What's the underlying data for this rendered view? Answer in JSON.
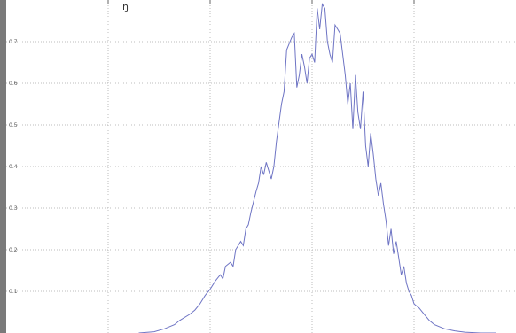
{
  "chart_data": {
    "type": "line",
    "title": "ŋ",
    "xlabel": "",
    "ylabel": "",
    "xlim": [
      0,
      1
    ],
    "ylim": [
      0,
      0.8
    ],
    "x_gridlines": [
      0.2,
      0.4,
      0.6,
      0.8
    ],
    "y_ticks": [
      {
        "value": 0.1,
        "label": "0.1"
      },
      {
        "value": 0.2,
        "label": "0.2"
      },
      {
        "value": 0.3,
        "label": "0.3"
      },
      {
        "value": 0.4,
        "label": "0.4"
      },
      {
        "value": 0.5,
        "label": "0.5"
      },
      {
        "value": 0.6,
        "label": "0.6"
      },
      {
        "value": 0.7,
        "label": "0.7"
      }
    ],
    "grid": true,
    "legend": "none",
    "colors": {
      "line": "#6e74c4",
      "grid": "#bdbdbd",
      "left_bar": "#7a7a7a",
      "background": "#ffffff"
    },
    "series": [
      {
        "x": [
          0.26,
          0.29,
          0.31,
          0.33,
          0.34,
          0.36,
          0.37,
          0.38,
          0.385,
          0.39,
          0.4,
          0.41,
          0.42,
          0.425,
          0.43,
          0.44,
          0.445,
          0.45,
          0.46,
          0.465,
          0.47,
          0.475,
          0.48,
          0.49,
          0.495,
          0.5,
          0.505,
          0.51,
          0.52,
          0.525,
          0.53,
          0.54,
          0.545,
          0.55,
          0.56,
          0.565,
          0.57,
          0.575,
          0.58,
          0.585,
          0.59,
          0.595,
          0.6,
          0.605,
          0.61,
          0.615,
          0.62,
          0.625,
          0.63,
          0.635,
          0.64,
          0.645,
          0.65,
          0.655,
          0.66,
          0.665,
          0.67,
          0.675,
          0.68,
          0.685,
          0.69,
          0.695,
          0.7,
          0.705,
          0.71,
          0.715,
          0.72,
          0.725,
          0.73,
          0.735,
          0.74,
          0.745,
          0.75,
          0.755,
          0.76,
          0.765,
          0.77,
          0.775,
          0.78,
          0.785,
          0.79,
          0.795,
          0.8,
          0.81,
          0.82,
          0.83,
          0.84,
          0.86,
          0.88,
          0.9,
          0.93,
          0.96
        ],
        "y": [
          0.0,
          0.003,
          0.01,
          0.02,
          0.03,
          0.045,
          0.055,
          0.07,
          0.08,
          0.09,
          0.105,
          0.125,
          0.14,
          0.13,
          0.16,
          0.17,
          0.16,
          0.2,
          0.22,
          0.21,
          0.25,
          0.26,
          0.29,
          0.34,
          0.36,
          0.4,
          0.38,
          0.41,
          0.37,
          0.4,
          0.46,
          0.55,
          0.58,
          0.68,
          0.71,
          0.72,
          0.59,
          0.62,
          0.67,
          0.64,
          0.6,
          0.66,
          0.67,
          0.65,
          0.78,
          0.73,
          0.79,
          0.78,
          0.7,
          0.67,
          0.65,
          0.74,
          0.73,
          0.72,
          0.67,
          0.62,
          0.55,
          0.6,
          0.49,
          0.62,
          0.53,
          0.49,
          0.58,
          0.45,
          0.4,
          0.48,
          0.43,
          0.37,
          0.33,
          0.36,
          0.31,
          0.27,
          0.21,
          0.25,
          0.19,
          0.22,
          0.18,
          0.14,
          0.16,
          0.12,
          0.1,
          0.09,
          0.07,
          0.06,
          0.045,
          0.03,
          0.02,
          0.01,
          0.005,
          0.002,
          0.0,
          0.0
        ]
      }
    ]
  }
}
